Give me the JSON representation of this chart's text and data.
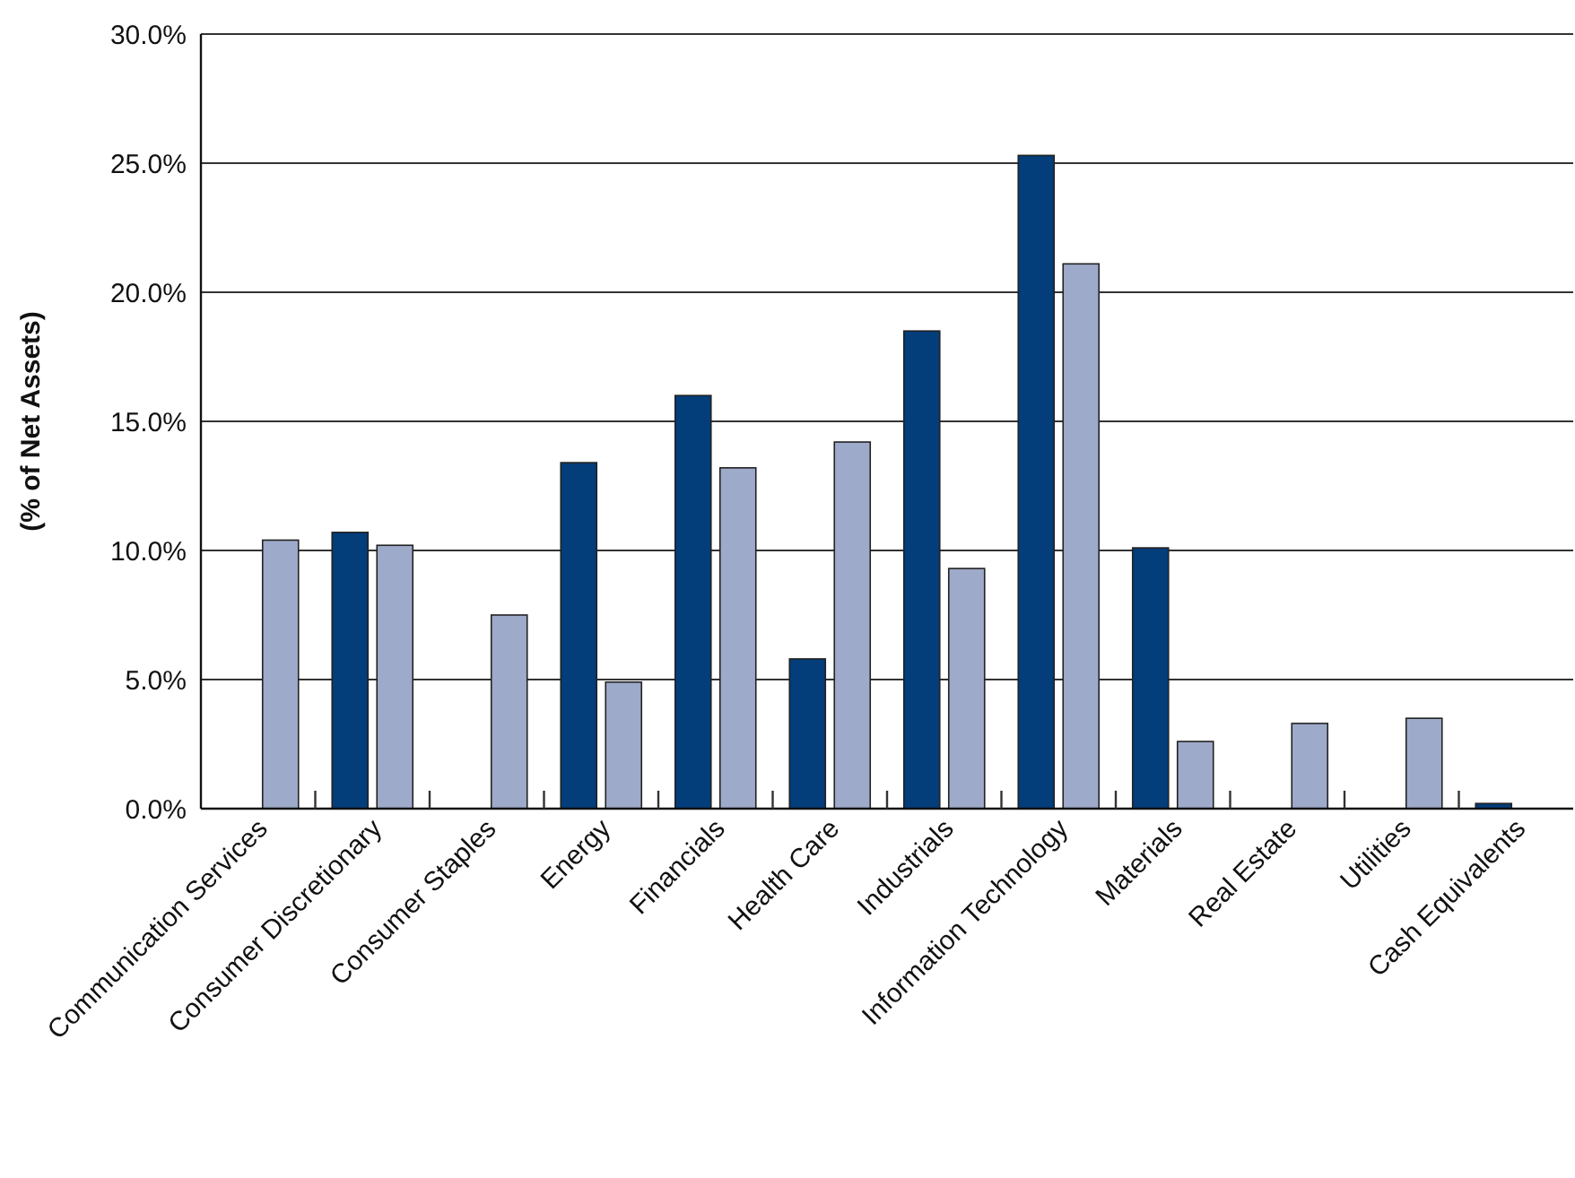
{
  "chart_data": {
    "type": "bar",
    "ylabel": "(% of Net Assets)",
    "categories": [
      "Communication Services",
      "Consumer Discretionary",
      "Consumer Staples",
      "Energy",
      "Financials",
      "Health Care",
      "Industrials",
      "Information Technology",
      "Materials",
      "Real Estate",
      "Utilities",
      "Cash Equivalents"
    ],
    "series": [
      {
        "color": "#033d7a",
        "values": [
          0,
          10.7,
          0,
          13.4,
          16.0,
          5.8,
          18.5,
          25.3,
          10.1,
          0,
          0,
          0.2
        ]
      },
      {
        "color": "#9eaac9",
        "values": [
          10.4,
          10.2,
          7.5,
          4.9,
          13.2,
          14.2,
          9.3,
          21.1,
          2.6,
          3.3,
          3.5,
          0
        ]
      }
    ],
    "ylim": [
      0,
      30
    ],
    "yticks": [
      {
        "value": 0,
        "label": "0.0%"
      },
      {
        "value": 5,
        "label": "5.0%"
      },
      {
        "value": 10,
        "label": "10.0%"
      },
      {
        "value": 15,
        "label": "15.0%"
      },
      {
        "value": 20,
        "label": "20.0%"
      },
      {
        "value": 25,
        "label": "25.0%"
      },
      {
        "value": 30,
        "label": "30.0%"
      }
    ],
    "grid": "y"
  }
}
